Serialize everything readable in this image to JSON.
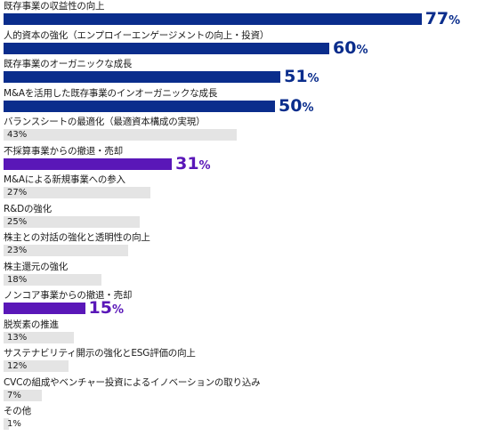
{
  "chart_data": {
    "type": "bar",
    "orientation": "horizontal",
    "xlim": [
      0,
      100
    ],
    "colors": {
      "navy": "#0a2d8c",
      "purple": "#5a17b8",
      "gray": "#e4e4e4",
      "value_text_navy": "#0a2d8c",
      "value_text_purple": "#5a17b8"
    },
    "items": [
      {
        "label": "既存事業の収益性の向上",
        "value": 77,
        "display": "77",
        "unit": "%",
        "style": "navy"
      },
      {
        "label": "人的資本の強化（エンプロイーエンゲージメントの向上・投資）",
        "value": 60,
        "display": "60",
        "unit": "%",
        "style": "navy"
      },
      {
        "label": "既存事業のオーガニックな成長",
        "value": 51,
        "display": "51",
        "unit": "%",
        "style": "navy"
      },
      {
        "label": "M&Aを活用した既存事業のインオーガニックな成長",
        "value": 50,
        "display": "50",
        "unit": "%",
        "style": "navy"
      },
      {
        "label": "バランスシートの最適化（最適資本構成の実現）",
        "value": 43,
        "display": "43%",
        "unit": "",
        "style": "gray"
      },
      {
        "label": "不採算事業からの撤退・売却",
        "value": 31,
        "display": "31",
        "unit": "%",
        "style": "purple"
      },
      {
        "label": "M&Aによる新規事業への参入",
        "value": 27,
        "display": "27%",
        "unit": "",
        "style": "gray"
      },
      {
        "label": "R&Dの強化",
        "value": 25,
        "display": "25%",
        "unit": "",
        "style": "gray"
      },
      {
        "label": "株主との対話の強化と透明性の向上",
        "value": 23,
        "display": "23%",
        "unit": "",
        "style": "gray"
      },
      {
        "label": "株主還元の強化",
        "value": 18,
        "display": "18%",
        "unit": "",
        "style": "gray"
      },
      {
        "label": "ノンコア事業からの撤退・売却",
        "value": 15,
        "display": "15",
        "unit": "%",
        "style": "purple"
      },
      {
        "label": "脱炭素の推進",
        "value": 13,
        "display": "13%",
        "unit": "",
        "style": "gray"
      },
      {
        "label": "サステナビリティ開示の強化とESG評価の向上",
        "value": 12,
        "display": "12%",
        "unit": "",
        "style": "gray"
      },
      {
        "label": "CVCの組成やベンチャー投資によるイノベーションの取り込み",
        "value": 7,
        "display": "7%",
        "unit": "",
        "style": "gray"
      },
      {
        "label": "その他",
        "value": 1,
        "display": "1%",
        "unit": "",
        "style": "gray"
      }
    ]
  }
}
